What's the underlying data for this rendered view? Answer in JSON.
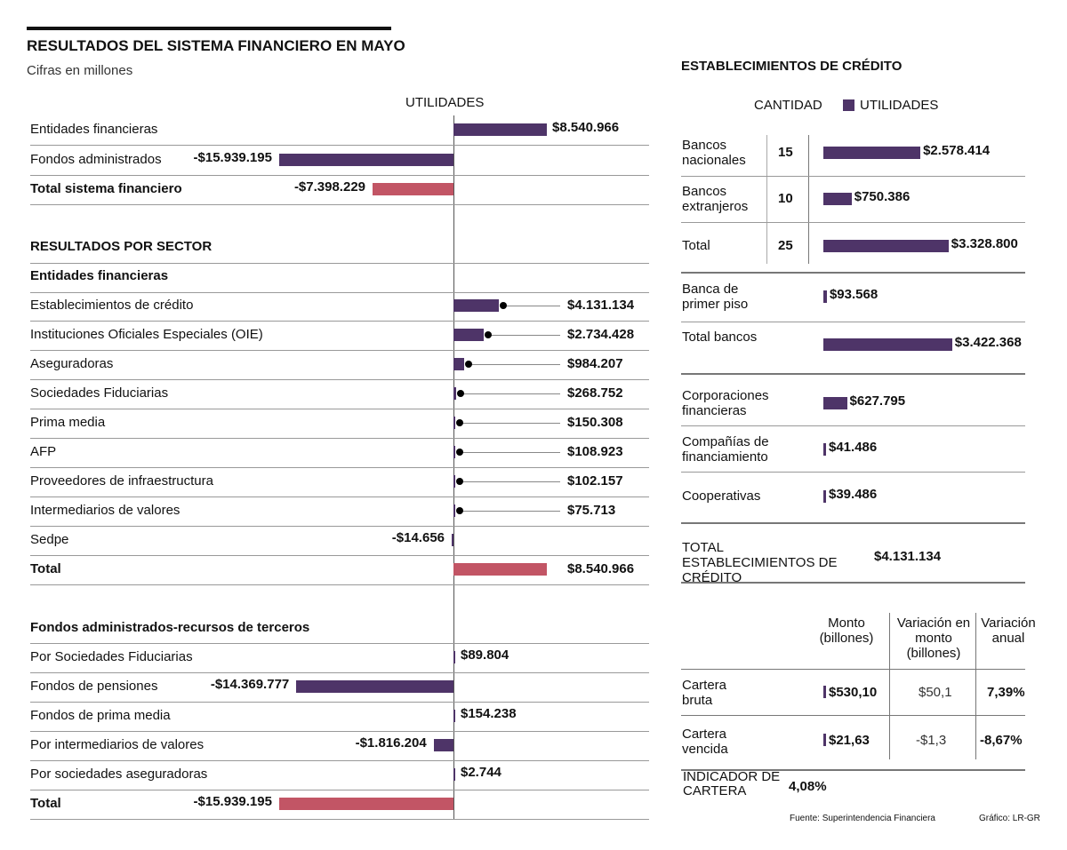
{
  "title": "RESULTADOS DEL SISTEMA FINANCIERO EN MAYO",
  "subtitle": "Cifras en millones",
  "colors": {
    "purple": "#4e3468",
    "red": "#c25565"
  },
  "chart_data": [
    {
      "type": "bar",
      "axis_label": "UTILIDADES",
      "unit": "millones",
      "categories": [
        "Entidades financieras",
        "Fondos administrados",
        "Total sistema financiero"
      ],
      "values": [
        8540966,
        -15939195,
        -7398229
      ],
      "labels": [
        "$8.540.966",
        "-$15.939.195",
        "-$7.398.229"
      ],
      "bold": [
        false,
        false,
        true
      ],
      "total": [
        false,
        false,
        true
      ]
    },
    {
      "type": "bar",
      "section": "RESULTADOS POR SECTOR",
      "group": "Entidades financieras",
      "categories": [
        "Establecimientos de crédito",
        "Instituciones Oficiales Especiales (OIE)",
        "Aseguradoras",
        "Sociedades Fiduciarias",
        "Prima media",
        "AFP",
        "Proveedores de infraestructura",
        "Intermediarios de valores",
        "Sedpe",
        "Total"
      ],
      "values": [
        4131134,
        2734428,
        984207,
        268752,
        150308,
        108923,
        102157,
        75713,
        -14656,
        8540966
      ],
      "labels": [
        "$4.131.134",
        "$2.734.428",
        "$984.207",
        "$268.752",
        "$150.308",
        "$108.923",
        "$102.157",
        "$75.713",
        "-$14.656",
        "$8.540.966"
      ]
    },
    {
      "type": "bar",
      "group": "Fondos administrados-recursos de terceros",
      "categories": [
        "Por Sociedades Fiduciarias",
        "Fondos de pensiones",
        "Fondos de prima media",
        "Por intermediarios de valores",
        "Por sociedades aseguradoras",
        "Total"
      ],
      "values": [
        89804,
        -14369777,
        154238,
        -1816204,
        2744,
        -15939195
      ],
      "labels": [
        "$89.804",
        "-$14.369.777",
        "$154.238",
        "-$1.816.204",
        "$2.744",
        "-$15.939.195"
      ]
    },
    {
      "type": "bar",
      "title": "ESTABLECIMIENTOS DE CRÉDITO",
      "legend": [
        "CANTIDAD",
        "UTILIDADES"
      ],
      "categories": [
        "Bancos nacionales",
        "Bancos extranjeros",
        "Total",
        "Banca de primer piso",
        "Total bancos",
        "Corporaciones financieras",
        "Compañías de financiamiento",
        "Cooperativas"
      ],
      "cantidad": [
        "15",
        "10",
        "25"
      ],
      "values": [
        2578414,
        750386,
        3328800,
        93568,
        3422368,
        627795,
        41486,
        39486
      ],
      "labels": [
        "$2.578.414",
        "$750.386",
        "$3.328.800",
        "$93.568",
        "$3.422.368",
        "$627.795",
        "$41.486",
        "$39.486"
      ]
    }
  ],
  "total_establecimientos": {
    "label": "TOTAL ESTABLECIMIENTOS DE CRÉDITO",
    "value": "$4.131.134"
  },
  "cartera": {
    "headers": [
      "Monto (billones)",
      "Variación en monto (billones)",
      "Variación anual"
    ],
    "rows": [
      {
        "label": "Cartera bruta",
        "monto": "$530,10",
        "variacion": "$50,1",
        "anual": "7,39%"
      },
      {
        "label": "Cartera vencida",
        "monto": "$21,63",
        "variacion": "-$1,3",
        "anual": "-8,67%"
      }
    ],
    "indicador_label": "INDICADOR DE CARTERA",
    "indicador_value": "4,08%"
  },
  "source": "Fuente: Superintendencia Financiera",
  "credit": "Gráfico: LR-GR"
}
